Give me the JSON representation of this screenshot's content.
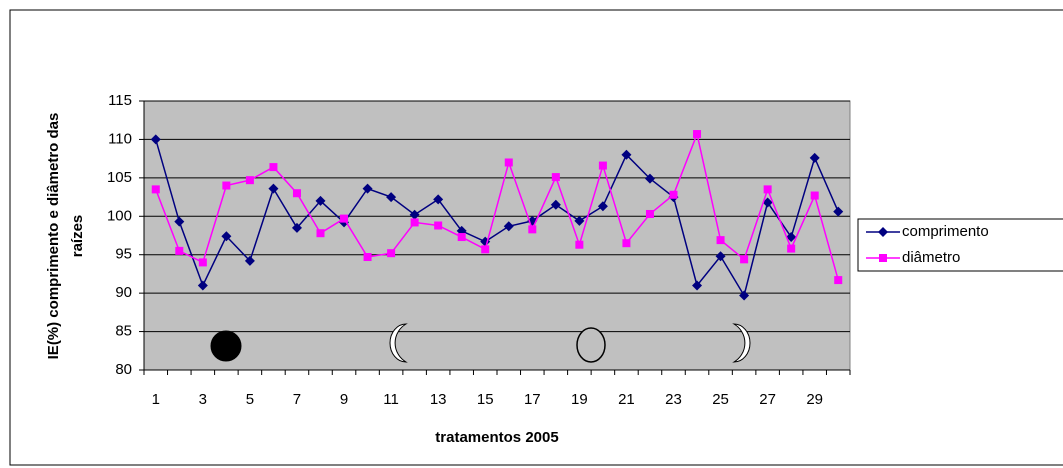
{
  "chart_data": {
    "type": "line",
    "x_label": "tratamentos 2005",
    "y_label": [
      "IE(%) comprimento e diâmetro das",
      "raízes"
    ],
    "categories": [
      1,
      null,
      3,
      null,
      5,
      null,
      7,
      null,
      9,
      null,
      11,
      null,
      13,
      null,
      15,
      null,
      17,
      null,
      19,
      null,
      21,
      null,
      23,
      null,
      25,
      null,
      27,
      null,
      29,
      null
    ],
    "series": [
      {
        "name": "comprimento",
        "color": "#000080",
        "marker": "diamond",
        "values": [
          110,
          99.3,
          91,
          97.4,
          94.2,
          103.6,
          98.5,
          102,
          99.2,
          103.6,
          102.5,
          100.2,
          102.2,
          98.1,
          96.7,
          98.7,
          99.4,
          101.5,
          99.4,
          101.3,
          108,
          104.9,
          102.5,
          91,
          94.8,
          89.7,
          101.8,
          97.3,
          107.6,
          100.6
        ]
      },
      {
        "name": "diâmetro",
        "color": "#ff00ff",
        "marker": "square",
        "values": [
          103.5,
          95.5,
          94,
          104,
          104.7,
          106.4,
          103,
          97.8,
          99.7,
          94.7,
          95.2,
          99.2,
          98.8,
          97.3,
          95.7,
          107,
          98.3,
          105.1,
          96.3,
          106.6,
          96.5,
          100.3,
          102.8,
          110.7,
          96.9,
          94.4,
          103.5,
          95.8,
          102.7,
          91.7
        ]
      }
    ],
    "ylim": [
      80,
      115
    ],
    "yticks": [
      80,
      85,
      90,
      95,
      100,
      105,
      110,
      115
    ],
    "grid": true,
    "legend": "right"
  }
}
